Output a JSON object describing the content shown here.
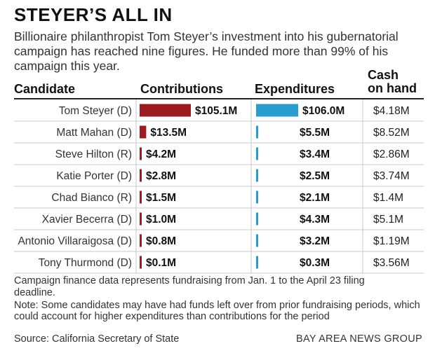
{
  "header": {
    "title": "STEYER’S ALL IN",
    "subtitle": "Billionaire philanthropist Tom Steyer’s investment into his gubernatorial campaign has reached nine figures. He funded more than 99% of his campaign this year."
  },
  "columns": {
    "candidate": "Candidate",
    "contributions": "Contributions",
    "expenditures": "Expenditures",
    "cash_line1": "Cash",
    "cash_line2": "on hand"
  },
  "colors": {
    "contributions": "#9b1c20",
    "expenditures": "#2b9ccf"
  },
  "chart_data": {
    "type": "bar",
    "categories": [
      "Tom Steyer (D)",
      "Matt Mahan (D)",
      "Steve Hilton (R)",
      "Katie Porter (D)",
      "Chad Bianco (R)",
      "Xavier Becerra (D)",
      "Antonio Villaraigosa (D)",
      "Tony Thurmond (D)"
    ],
    "series": [
      {
        "name": "Contributions",
        "values": [
          105.1,
          13.5,
          4.2,
          2.8,
          1.5,
          1.0,
          0.8,
          0.1
        ],
        "labels": [
          "$105.1M",
          "$13.5M",
          "$4.2M",
          "$2.8M",
          "$1.5M",
          "$1.0M",
          "$0.8M",
          "$0.1M"
        ]
      },
      {
        "name": "Expenditures",
        "values": [
          106.0,
          5.5,
          3.4,
          2.5,
          2.1,
          4.3,
          3.2,
          0.3
        ],
        "labels": [
          "$106.0M",
          "$5.5M",
          "$3.4M",
          "$2.5M",
          "$2.1M",
          "$4.3M",
          "$3.2M",
          "$0.3M"
        ]
      }
    ],
    "cash_on_hand": [
      "$4.18M",
      "$8.52M",
      "$2.86M",
      "$3.74M",
      "$1.4M",
      "$5.1M",
      "$1.19M",
      "$3.56M"
    ],
    "unit": "millions of dollars"
  },
  "footer": {
    "note1": "Campaign finance data represents fundraising from Jan. 1 to the April 23 filing deadline.",
    "note2": "Note: Some candidates may have had funds left over from prior fundraising periods, which could account for higher expenditures than contributions for the period",
    "source": "Source: California Secretary of State",
    "credit": "BAY AREA NEWS GROUP"
  }
}
